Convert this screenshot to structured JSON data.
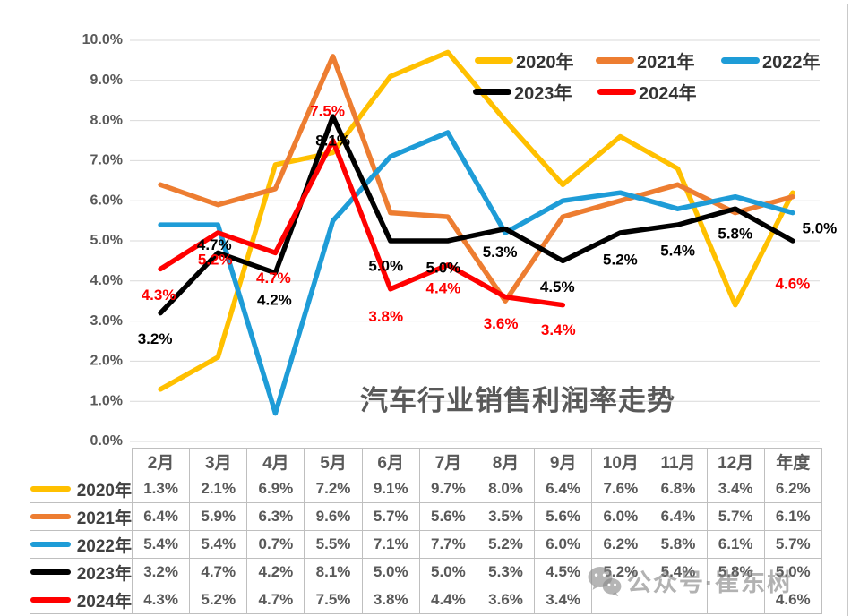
{
  "title": "汽车行业销售利润率走势",
  "watermark": {
    "icon": "wechat-icon",
    "text": "公众号·崔东树"
  },
  "y_axis": {
    "min": 0,
    "max": 10,
    "step": 1,
    "tick_suffix": "%",
    "tick_decimals": 1
  },
  "chart_data": {
    "type": "line",
    "title": "汽车行业销售利润率走势",
    "categories": [
      "2月",
      "3月",
      "4月",
      "5月",
      "6月",
      "7月",
      "8月",
      "9月",
      "10月",
      "11月",
      "12月",
      "年度"
    ],
    "series": [
      {
        "name": "2020年",
        "color": "#FFC000",
        "point_labels": false,
        "values": [
          1.3,
          2.1,
          6.9,
          7.2,
          9.1,
          9.7,
          8.0,
          6.4,
          7.6,
          6.8,
          3.4,
          6.2
        ]
      },
      {
        "name": "2021年",
        "color": "#ED7D31",
        "point_labels": false,
        "values": [
          6.4,
          5.9,
          6.3,
          9.6,
          5.7,
          5.6,
          3.5,
          5.6,
          6.0,
          6.4,
          5.7,
          6.1
        ]
      },
      {
        "name": "2022年",
        "color": "#1E9CD7",
        "point_labels": false,
        "values": [
          5.4,
          5.4,
          0.7,
          5.5,
          7.1,
          7.7,
          5.2,
          6.0,
          6.2,
          5.8,
          6.1,
          5.7
        ]
      },
      {
        "name": "2023年",
        "color": "#000000",
        "point_labels": true,
        "values": [
          3.2,
          4.7,
          4.2,
          8.1,
          5.0,
          5.0,
          5.3,
          4.5,
          5.2,
          5.4,
          5.8,
          5.0
        ]
      },
      {
        "name": "2024年",
        "color": "#FF0000",
        "point_labels": true,
        "values": [
          4.3,
          5.2,
          4.7,
          7.5,
          3.8,
          4.4,
          3.6,
          3.4,
          null,
          null,
          null,
          4.6
        ]
      }
    ],
    "ylim": [
      0,
      10
    ],
    "ytick_labels": [
      "0.0%",
      "1.0%",
      "2.0%",
      "3.0%",
      "4.0%",
      "5.0%",
      "6.0%",
      "7.0%",
      "8.0%",
      "9.0%",
      "10.0%"
    ],
    "value_suffix": "%",
    "grid": true,
    "legend_position": "top-right",
    "gridline_color": "#D9D9D9",
    "axis_label_color": "#595959"
  }
}
